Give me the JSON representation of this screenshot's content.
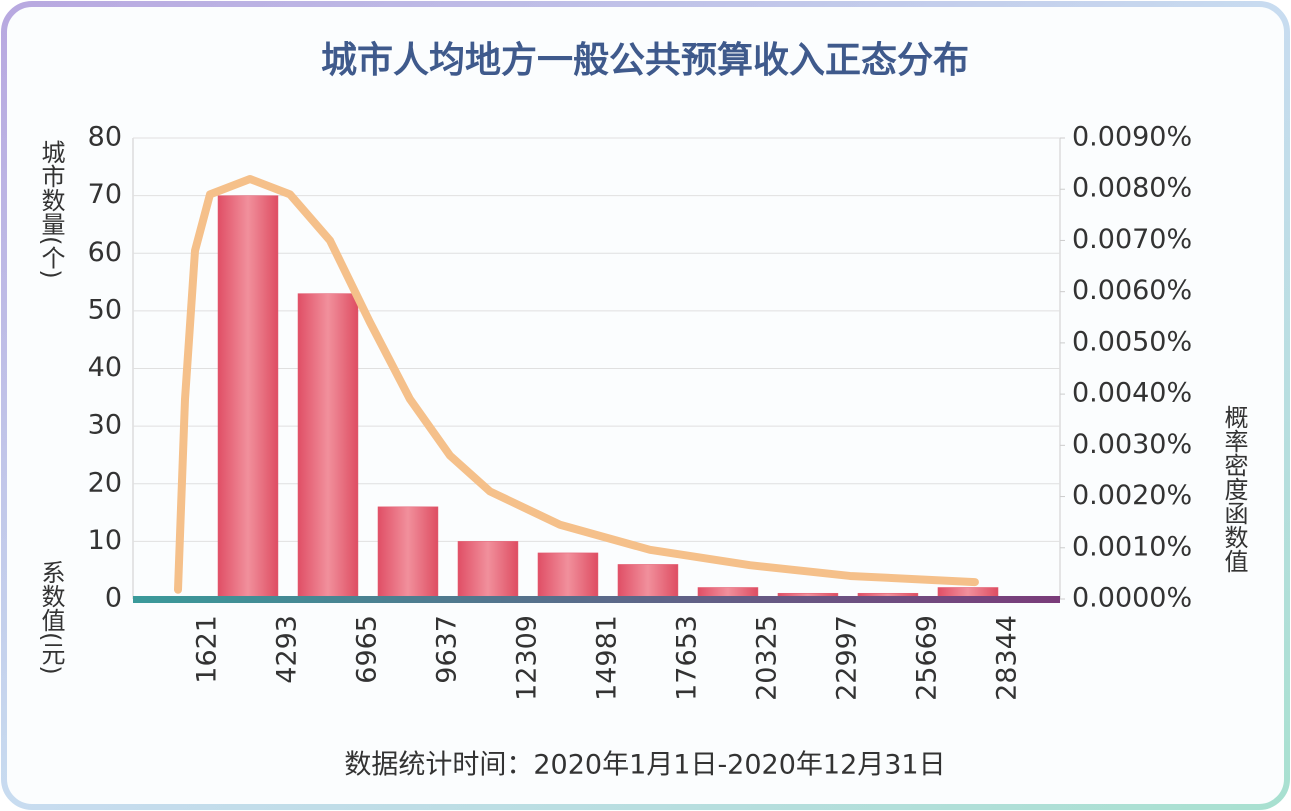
{
  "chart_data": {
    "type": "histogram",
    "title": "城市人均地方一般公共预算收入正态分布",
    "y_label": "城市数量(个)",
    "x_label": "系数值(元)",
    "y2_label": "概率密度函数值",
    "footnote": "数据统计时间：2020年1月1日-2020年12月31日",
    "bins": [
      1621,
      4293,
      6965,
      9637,
      12309,
      14981,
      17653,
      20325,
      22997,
      25669,
      28344
    ],
    "counts": [
      70,
      53,
      16,
      10,
      8,
      6,
      2,
      1,
      1,
      2
    ],
    "color": "#e25d70",
    "xlim": [
      -884,
      30080
    ],
    "ylim": [
      0,
      80
    ],
    "yticks": [
      0,
      10,
      20,
      30,
      40,
      50,
      60,
      70,
      80
    ],
    "y2lim": [
      0,
      0.009
    ],
    "y2ticks": [
      {
        "value": 0,
        "label": "0.0000%"
      },
      {
        "value": 0.001,
        "label": "0.0010%"
      },
      {
        "value": 0.002,
        "label": "0.0020%"
      },
      {
        "value": 0.003,
        "label": "0.0030%"
      },
      {
        "value": 0.004,
        "label": "0.0040%"
      },
      {
        "value": 0.005,
        "label": "0.0050%"
      },
      {
        "value": 0.006,
        "label": "0.0060%"
      },
      {
        "value": 0.007,
        "label": "0.0070%"
      },
      {
        "value": 0.008,
        "label": "0.0080%"
      },
      {
        "value": 0.009,
        "label": "0.0090%"
      }
    ],
    "grid": true,
    "series": [
      {
        "type": "line",
        "axis": "y2",
        "color": "#f5c08a",
        "x": [
          619,
          853,
          1187,
          1688,
          3024,
          4360,
          5696,
          7032,
          8368,
          9704,
          11040,
          13378,
          16384,
          19724,
          23064,
          27239
        ],
        "values": [
          0.00018,
          0.0039,
          0.0068,
          0.0079,
          0.0082,
          0.0079,
          0.007,
          0.0054,
          0.0039,
          0.0028,
          0.0021,
          0.00145,
          0.00096,
          0.00066,
          0.00045,
          0.00033
        ]
      }
    ]
  }
}
